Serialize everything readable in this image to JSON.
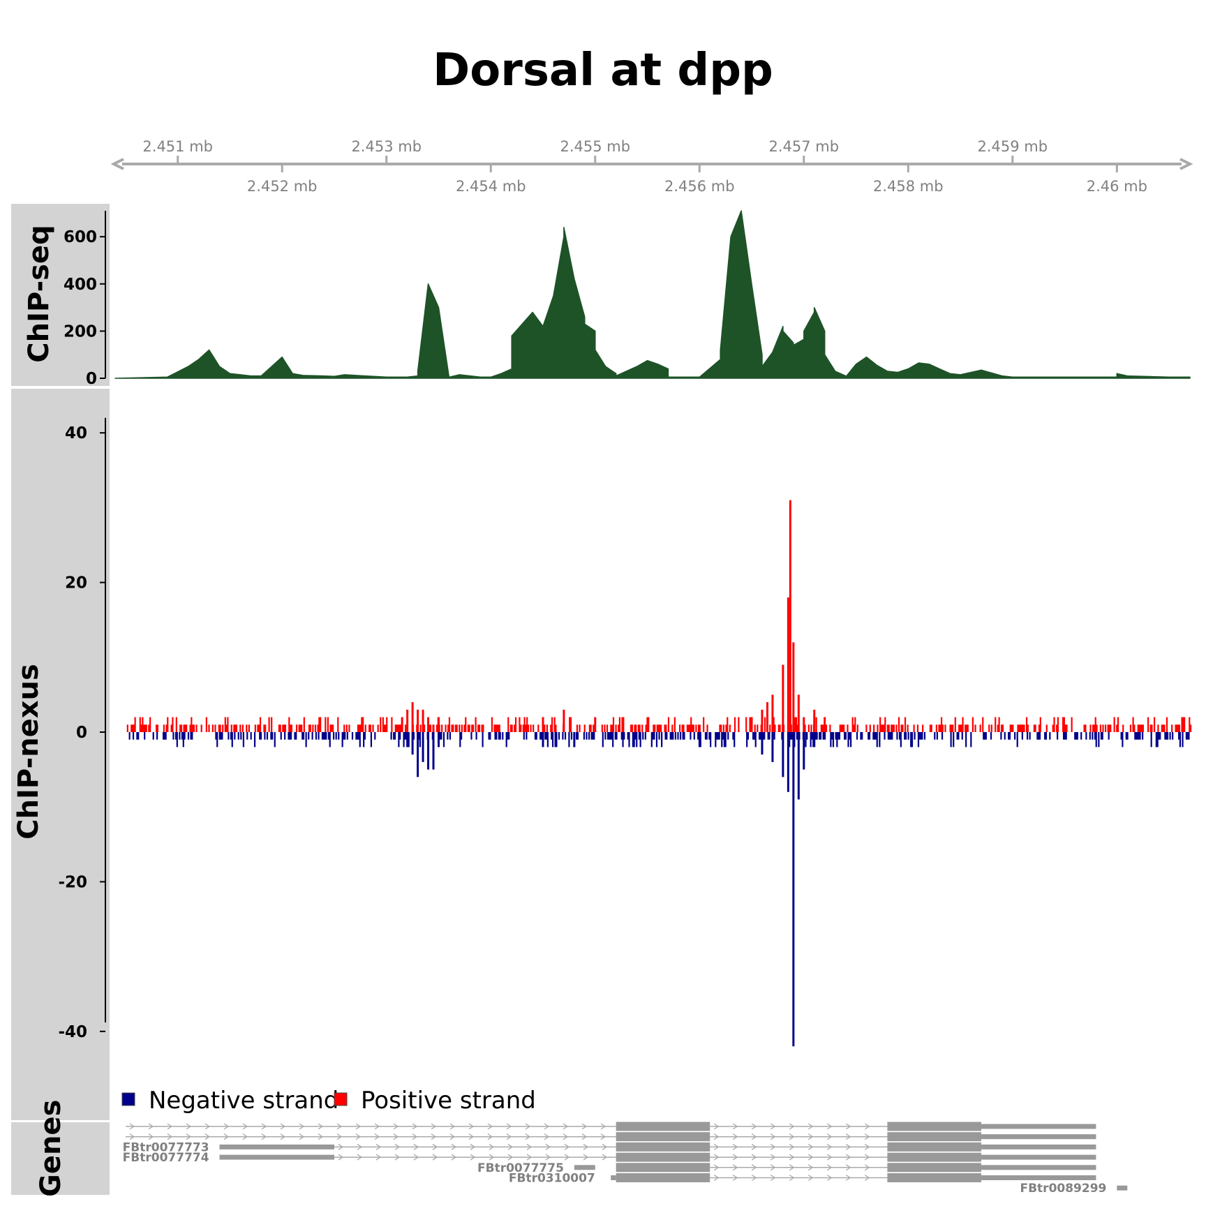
{
  "title": "Dorsal at dpp",
  "colors": {
    "chipseq_fill": "#1e5328",
    "positive_strand": "#ff0000",
    "negative_strand": "#00008b",
    "genome_axis": "#a9a9a9",
    "gene_feature": "#999999",
    "gene_label": "#808080",
    "panel_label_bg": "#d3d3d3"
  },
  "panels": {
    "chipseq": "ChIP-seq",
    "chipnexus": "ChIP-nexus",
    "genes": "Genes"
  },
  "chart_data": {
    "type": "area",
    "genome_axis": {
      "range_mb": [
        2.4504,
        2.4607
      ],
      "ticks_top": [
        {
          "pos": 2.451,
          "label": "2.451 mb"
        },
        {
          "pos": 2.453,
          "label": "2.453 mb"
        },
        {
          "pos": 2.455,
          "label": "2.455 mb"
        },
        {
          "pos": 2.457,
          "label": "2.457 mb"
        },
        {
          "pos": 2.459,
          "label": "2.459 mb"
        }
      ],
      "ticks_bottom": [
        {
          "pos": 2.452,
          "label": "2.452 mb"
        },
        {
          "pos": 2.454,
          "label": "2.454 mb"
        },
        {
          "pos": 2.456,
          "label": "2.456 mb"
        },
        {
          "pos": 2.458,
          "label": "2.458 mb"
        },
        {
          "pos": 2.46,
          "label": "2.46 mb"
        }
      ]
    },
    "chipseq": {
      "type": "area",
      "ylim": [
        0,
        710
      ],
      "yticks": [
        0,
        200,
        400,
        600
      ],
      "x": [
        2.4504,
        2.4509,
        2.4511,
        2.4512,
        2.4513,
        2.4514,
        2.4515,
        2.4516,
        2.4517,
        2.4518,
        2.452,
        2.4521,
        2.4522,
        2.4524,
        2.4525,
        2.4526,
        2.4528,
        2.453,
        2.4532,
        2.4533,
        2.4533,
        2.4534,
        2.4535,
        2.4536,
        2.4537,
        2.4539,
        2.454,
        2.4541,
        2.4542,
        2.4542,
        2.4544,
        2.4545,
        2.4546,
        2.4547,
        2.4547,
        2.4548,
        2.4549,
        2.4549,
        2.455,
        2.455,
        2.4551,
        2.4552,
        2.4552,
        2.4554,
        2.4555,
        2.4556,
        2.4557,
        2.4557,
        2.4558,
        2.4559,
        2.456,
        2.4562,
        2.4562,
        2.4563,
        2.4564,
        2.4565,
        2.4566,
        2.4566,
        2.4567,
        2.4568,
        2.4568,
        2.4569,
        2.4569,
        2.457,
        2.457,
        2.4571,
        2.4571,
        2.4572,
        2.4572,
        2.4573,
        2.4574,
        2.4574,
        2.4575,
        2.4576,
        2.4577,
        2.4578,
        2.4579,
        2.458,
        2.4581,
        2.4582,
        2.4583,
        2.4584,
        2.4585,
        2.4587,
        2.4589,
        2.459,
        2.4592,
        2.4594,
        2.4596,
        2.4598,
        2.46,
        2.46,
        2.4601,
        2.4605,
        2.4607
      ],
      "y": [
        0,
        5,
        50,
        80,
        120,
        50,
        20,
        15,
        10,
        10,
        90,
        20,
        12,
        10,
        8,
        15,
        10,
        5,
        5,
        10,
        30,
        400,
        300,
        5,
        15,
        5,
        5,
        20,
        40,
        180,
        280,
        220,
        350,
        600,
        640,
        420,
        260,
        230,
        200,
        120,
        50,
        20,
        10,
        50,
        75,
        60,
        40,
        5,
        5,
        5,
        5,
        80,
        120,
        600,
        710,
        400,
        100,
        50,
        110,
        220,
        200,
        150,
        140,
        165,
        200,
        280,
        300,
        200,
        100,
        30,
        10,
        5,
        60,
        90,
        55,
        30,
        25,
        40,
        65,
        60,
        40,
        20,
        15,
        35,
        10,
        5,
        5,
        5,
        5,
        5,
        5,
        20,
        10,
        5,
        5
      ]
    },
    "chipnexus": {
      "type": "bar",
      "ylim": [
        -43,
        42
      ],
      "yticks": [
        40,
        20,
        0,
        -20,
        -40
      ],
      "series": [
        {
          "name": "Positive strand",
          "x": [
            2.4531,
            2.45315,
            2.4532,
            2.45325,
            2.4533,
            2.45335,
            2.4534,
            2.45345,
            2.4535,
            2.4545,
            2.4547,
            2.455,
            2.4565,
            2.4566,
            2.45665,
            2.4567,
            2.4568,
            2.45685,
            2.45687,
            2.4569,
            2.45695,
            2.457,
            2.4571,
            2.4572
          ],
          "values": [
            1,
            2,
            3,
            4,
            3,
            3,
            2,
            1,
            2,
            2,
            3,
            2,
            2,
            3,
            4,
            5,
            9,
            18,
            31,
            12,
            5,
            2,
            3,
            2
          ]
        },
        {
          "name": "Negative strand",
          "x": [
            2.4532,
            2.45325,
            2.4533,
            2.45335,
            2.4534,
            2.45345,
            2.4535,
            2.4545,
            2.4548,
            2.4566,
            2.4567,
            2.4568,
            2.45685,
            2.4569,
            2.45695,
            2.457,
            2.4571,
            2.4572
          ],
          "values": [
            -2,
            -3,
            -6,
            -4,
            -5,
            -5,
            -2,
            -2,
            -2,
            -3,
            -4,
            -6,
            -8,
            -42,
            -9,
            -5,
            -2,
            -1
          ]
        }
      ],
      "background": {
        "positive_range": [
          2.4505,
          2.4607
        ],
        "negative_range": [
          2.4505,
          2.4607
        ],
        "typical_positive": 1,
        "typical_negative": -1
      }
    },
    "legend": [
      {
        "label": "Negative strand",
        "color": "#00008b"
      },
      {
        "label": "Positive strand",
        "color": "#ff0000"
      }
    ],
    "genes": {
      "introns": [
        {
          "row": 0,
          "start": 2.4505,
          "end": 2.4552
        },
        {
          "row": 0,
          "start": 2.4561,
          "end": 2.4578
        },
        {
          "row": 1,
          "start": 2.4505,
          "end": 2.4552
        },
        {
          "row": 1,
          "start": 2.4561,
          "end": 2.4578
        },
        {
          "row": 2,
          "start": 2.4525,
          "end": 2.4552
        },
        {
          "row": 2,
          "start": 2.4561,
          "end": 2.4578
        },
        {
          "row": 3,
          "start": 2.4525,
          "end": 2.4552
        },
        {
          "row": 3,
          "start": 2.4561,
          "end": 2.4578
        },
        {
          "row": 4,
          "start": 2.4561,
          "end": 2.4578
        },
        {
          "row": 5,
          "start": 2.4561,
          "end": 2.4578
        }
      ],
      "exons": [
        {
          "row": 0,
          "start": 2.4552,
          "end": 2.4561,
          "thick": true
        },
        {
          "row": 0,
          "start": 2.4578,
          "end": 2.4587,
          "thick": true
        },
        {
          "row": 0,
          "start": 2.4587,
          "end": 2.4598,
          "thick": false
        },
        {
          "row": 1,
          "start": 2.4552,
          "end": 2.4561,
          "thick": true
        },
        {
          "row": 1,
          "start": 2.4578,
          "end": 2.4587,
          "thick": true
        },
        {
          "row": 1,
          "start": 2.4587,
          "end": 2.4598,
          "thick": false
        },
        {
          "row": 2,
          "start": 2.4514,
          "end": 2.4525,
          "thick": false
        },
        {
          "row": 2,
          "start": 2.4552,
          "end": 2.4561,
          "thick": true
        },
        {
          "row": 2,
          "start": 2.4578,
          "end": 2.4587,
          "thick": true
        },
        {
          "row": 2,
          "start": 2.4587,
          "end": 2.4598,
          "thick": false
        },
        {
          "row": 3,
          "start": 2.4514,
          "end": 2.4525,
          "thick": false
        },
        {
          "row": 3,
          "start": 2.4552,
          "end": 2.4561,
          "thick": true
        },
        {
          "row": 3,
          "start": 2.4578,
          "end": 2.4587,
          "thick": true
        },
        {
          "row": 3,
          "start": 2.4587,
          "end": 2.4598,
          "thick": false
        },
        {
          "row": 4,
          "start": 2.4548,
          "end": 2.455,
          "thick": false
        },
        {
          "row": 4,
          "start": 2.4552,
          "end": 2.4561,
          "thick": true
        },
        {
          "row": 4,
          "start": 2.4578,
          "end": 2.4587,
          "thick": true
        },
        {
          "row": 4,
          "start": 2.4587,
          "end": 2.4598,
          "thick": false
        },
        {
          "row": 5,
          "start": 2.45515,
          "end": 2.4552,
          "thick": false
        },
        {
          "row": 5,
          "start": 2.4552,
          "end": 2.4561,
          "thick": true
        },
        {
          "row": 5,
          "start": 2.4578,
          "end": 2.4587,
          "thick": true
        },
        {
          "row": 5,
          "start": 2.4587,
          "end": 2.4598,
          "thick": false
        },
        {
          "row": 6,
          "start": 2.46,
          "end": 2.4601,
          "thick": false
        }
      ],
      "labels": [
        {
          "row": 2,
          "at": 2.4513,
          "text": "FBtr0077773"
        },
        {
          "row": 3,
          "at": 2.4513,
          "text": "FBtr0077774"
        },
        {
          "row": 4,
          "at": 2.4547,
          "text": "FBtr0077775"
        },
        {
          "row": 5,
          "at": 2.455,
          "text": "FBtr0310007"
        },
        {
          "row": 6,
          "at": 2.4599,
          "text": "FBtr0089299"
        }
      ]
    }
  }
}
